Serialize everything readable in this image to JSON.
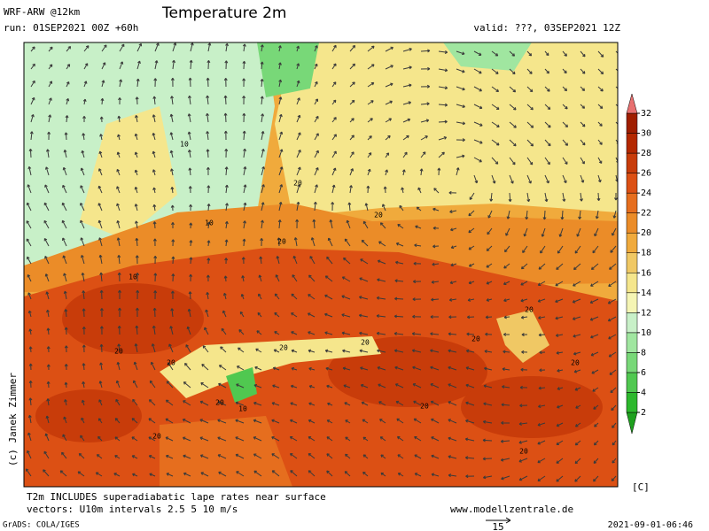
{
  "header": {
    "model": "WRF-ARW @12km",
    "title": "Temperature 2m",
    "run": "run: 01SEP2021 00Z +60h",
    "valid": "valid: ???, 03SEP2021 12Z"
  },
  "contour_labels": [
    "10",
    "10",
    "10",
    "20",
    "20",
    "20",
    "20",
    "20",
    "10",
    "20",
    "20",
    "20",
    "20",
    "20",
    "20",
    "20",
    "20",
    "20"
  ],
  "colorbar": {
    "unit": "[C]",
    "ticks": [
      2,
      4,
      6,
      8,
      10,
      12,
      14,
      16,
      18,
      20,
      22,
      24,
      26,
      28,
      30,
      32
    ],
    "colors": [
      "#1ea01e",
      "#2db82d",
      "#50c850",
      "#78d878",
      "#a0e6a0",
      "#c8f0c8",
      "#f5f5b4",
      "#f5e68c",
      "#f0c864",
      "#f0aa3c",
      "#eb8c28",
      "#e66e1e",
      "#dc5014",
      "#c83c0a",
      "#b42800",
      "#a01e00",
      "#e87070"
    ]
  },
  "footer": {
    "note": "T2m INCLUDES superadiabatic lape rates near surface",
    "vectors": "vectors: U10m intervals 2.5 5 10 m/s",
    "site": "www.modellzentrale.de",
    "grads": "GrADS: COLA/IGES",
    "ref_vector": "15",
    "timestamp": "2021-09-01-06:46",
    "copyright": "(c) Janek Zimmer"
  }
}
